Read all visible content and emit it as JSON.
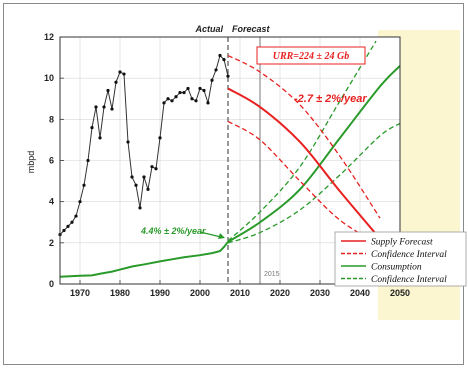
{
  "chart_data": {
    "type": "line",
    "xlabel": "",
    "ylabel": "mbpd",
    "xlim": [
      1965,
      2050
    ],
    "ylim": [
      0,
      12
    ],
    "x_ticks": [
      "1970",
      "1980",
      "1990",
      "2000",
      "2010",
      "2020",
      "2030",
      "2040",
      "2050"
    ],
    "y_ticks": [
      "0",
      "2",
      "4",
      "6",
      "8",
      "10",
      "12"
    ],
    "header_actual": "Actual",
    "header_forecast": "Forecast",
    "urr_label": "URR=224 ± 24 Gb",
    "decline_label": "-2.7 ± 2%/year",
    "growth_label": "4.4% ± 2%/year",
    "year_marker_label": "2015",
    "colors": {
      "actual": "#333333",
      "supply": "#e82020",
      "consumption": "#2a9a2a",
      "panel": "#fbf6d0"
    },
    "legend": [
      {
        "label": "Supply Forecast",
        "color": "#e82020",
        "dash": "solid"
      },
      {
        "label": "Confidence Interval",
        "color": "#e82020",
        "dash": "dashed"
      },
      {
        "label": "Consumption",
        "color": "#2a9a2a",
        "dash": "solid"
      },
      {
        "label": "Confidence Interval",
        "color": "#2a9a2a",
        "dash": "dashed"
      }
    ],
    "actual_production": [
      [
        1965,
        2.4
      ],
      [
        1966,
        2.6
      ],
      [
        1967,
        2.8
      ],
      [
        1968,
        3.0
      ],
      [
        1969,
        3.3
      ],
      [
        1970,
        4.0
      ],
      [
        1971,
        4.8
      ],
      [
        1972,
        6.0
      ],
      [
        1973,
        7.6
      ],
      [
        1974,
        8.6
      ],
      [
        1975,
        7.1
      ],
      [
        1976,
        8.6
      ],
      [
        1977,
        9.4
      ],
      [
        1978,
        8.5
      ],
      [
        1979,
        9.8
      ],
      [
        1980,
        10.3
      ],
      [
        1981,
        10.2
      ],
      [
        1982,
        6.9
      ],
      [
        1983,
        5.2
      ],
      [
        1984,
        4.8
      ],
      [
        1985,
        3.7
      ],
      [
        1986,
        5.2
      ],
      [
        1987,
        4.6
      ],
      [
        1988,
        5.7
      ],
      [
        1989,
        5.6
      ],
      [
        1990,
        7.1
      ],
      [
        1991,
        8.8
      ],
      [
        1992,
        9.0
      ],
      [
        1993,
        8.9
      ],
      [
        1994,
        9.1
      ],
      [
        1995,
        9.3
      ],
      [
        1996,
        9.3
      ],
      [
        1997,
        9.5
      ],
      [
        1998,
        9.0
      ],
      [
        1999,
        8.9
      ],
      [
        2000,
        9.5
      ],
      [
        2001,
        9.4
      ],
      [
        2002,
        8.8
      ],
      [
        2003,
        9.9
      ],
      [
        2004,
        10.4
      ],
      [
        2005,
        11.1
      ],
      [
        2006,
        10.9
      ],
      [
        2007,
        10.1
      ]
    ],
    "consumption_history": [
      [
        1965,
        0.35
      ],
      [
        1970,
        0.4
      ],
      [
        1973,
        0.42
      ],
      [
        1975,
        0.5
      ],
      [
        1978,
        0.6
      ],
      [
        1980,
        0.7
      ],
      [
        1983,
        0.85
      ],
      [
        1986,
        0.95
      ],
      [
        1990,
        1.1
      ],
      [
        1993,
        1.2
      ],
      [
        1996,
        1.3
      ],
      [
        2000,
        1.4
      ],
      [
        2003,
        1.5
      ],
      [
        2005,
        1.6
      ],
      [
        2006,
        1.8
      ],
      [
        2007,
        2.05
      ]
    ],
    "supply_forecast": [
      [
        2007,
        9.5
      ],
      [
        2015,
        8.6
      ],
      [
        2025,
        6.9
      ],
      [
        2035,
        4.5
      ],
      [
        2045,
        2.2
      ]
    ],
    "supply_upper": [
      [
        2007,
        11.1
      ],
      [
        2015,
        10.3
      ],
      [
        2025,
        8.7
      ],
      [
        2035,
        6.2
      ],
      [
        2045,
        3.2
      ]
    ],
    "supply_lower": [
      [
        2007,
        7.9
      ],
      [
        2015,
        7.0
      ],
      [
        2025,
        5.0
      ],
      [
        2035,
        3.1
      ],
      [
        2045,
        1.9
      ]
    ],
    "consumption_forecast": [
      [
        2007,
        2.05
      ],
      [
        2015,
        3.0
      ],
      [
        2025,
        4.6
      ],
      [
        2035,
        7.1
      ],
      [
        2045,
        9.6
      ],
      [
        2050,
        10.6
      ]
    ],
    "consumption_upper": [
      [
        2007,
        2.1
      ],
      [
        2015,
        3.5
      ],
      [
        2025,
        5.7
      ],
      [
        2035,
        8.9
      ],
      [
        2044,
        11.8
      ]
    ],
    "consumption_lower": [
      [
        2007,
        2.0
      ],
      [
        2015,
        2.5
      ],
      [
        2025,
        3.6
      ],
      [
        2035,
        5.3
      ],
      [
        2045,
        7.2
      ],
      [
        2050,
        7.8
      ]
    ]
  }
}
